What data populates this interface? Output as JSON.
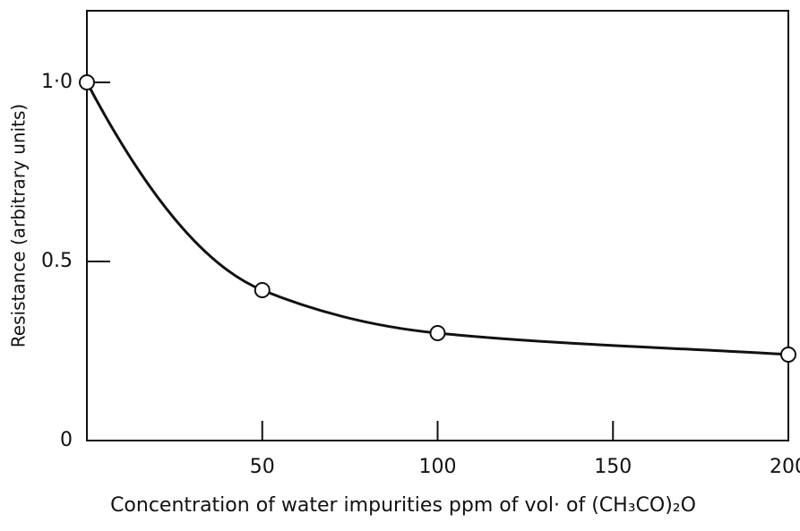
{
  "chart_data": {
    "type": "line",
    "x_label": "Concentration of water impurities ppm of vol· of (CH₃CO)₂O",
    "y_label": "Resistance (arbitrary units)",
    "x": [
      0,
      50,
      100,
      200
    ],
    "series": [
      {
        "color": "#111111",
        "values": [
          1.0,
          0.42,
          0.3,
          0.24
        ]
      }
    ],
    "xlim": [
      0,
      200
    ],
    "ylim": [
      0,
      1.2
    ],
    "xticks": [
      50,
      100,
      150,
      200
    ],
    "yticks": [
      0,
      0.5,
      {
        "value": 1,
        "label": "1·0"
      }
    ],
    "grid": false,
    "markers": true
  }
}
